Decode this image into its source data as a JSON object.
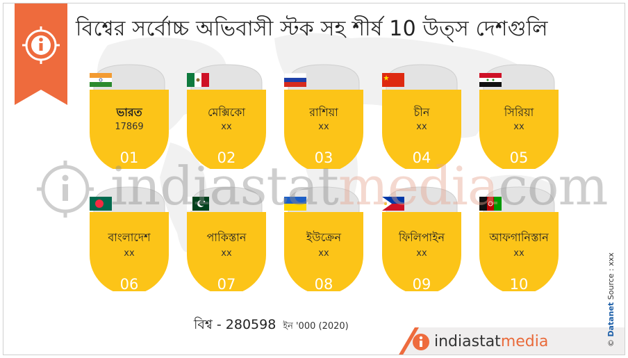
{
  "title": "বিশ্বের সর্বোচ্চ অভিবাসী স্টক সহ শীর্ষ 10 উত্স দেশগুলি",
  "info_icon": "info-icon",
  "colors": {
    "accent_orange": "#ee6b3d",
    "card_yellow": "#fcc418",
    "card_grey": "#d2d2d2"
  },
  "countries": [
    {
      "rank": "01",
      "name": "ভারত",
      "value": "17869",
      "flag": "india-flag-icon"
    },
    {
      "rank": "02",
      "name": "মেক্সিকো",
      "value": "xx",
      "flag": "mexico-flag-icon"
    },
    {
      "rank": "03",
      "name": "রাশিয়া",
      "value": "xx",
      "flag": "russia-flag-icon"
    },
    {
      "rank": "04",
      "name": "চীন",
      "value": "xx",
      "flag": "china-flag-icon"
    },
    {
      "rank": "05",
      "name": "সিরিয়া",
      "value": "xx",
      "flag": "syria-flag-icon"
    },
    {
      "rank": "06",
      "name": "বাংলাদেশ",
      "value": "xx",
      "flag": "bangladesh-flag-icon"
    },
    {
      "rank": "07",
      "name": "পাকিস্তান",
      "value": "xx",
      "flag": "pakistan-flag-icon"
    },
    {
      "rank": "08",
      "name": "ইউক্রেন",
      "value": "xx",
      "flag": "ukraine-flag-icon"
    },
    {
      "rank": "09",
      "name": "ফিলিপাইন",
      "value": "xx",
      "flag": "philippines-flag-icon"
    },
    {
      "rank": "10",
      "name": "আফগানিস্তান",
      "value": "xx",
      "flag": "afghanistan-flag-icon"
    }
  ],
  "total": {
    "label": "বিশ্ব - 280598",
    "unit": "ইন '000 (2020)"
  },
  "watermark": {
    "part1": "indiastat",
    "part2": "media",
    "part3": "com"
  },
  "footer": {
    "brand1": "indiastat",
    "brand2": "media"
  },
  "side": {
    "copyright": "© ",
    "brand": "Datanet",
    "source": "  Source : xxx"
  }
}
